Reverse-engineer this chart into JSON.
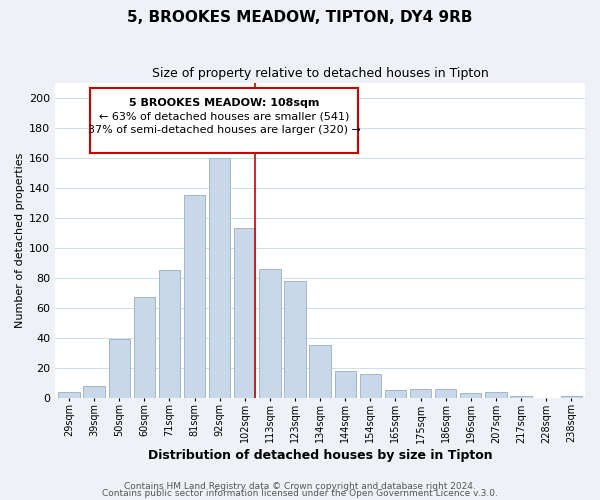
{
  "title": "5, BROOKES MEADOW, TIPTON, DY4 9RB",
  "subtitle": "Size of property relative to detached houses in Tipton",
  "xlabel": "Distribution of detached houses by size in Tipton",
  "ylabel": "Number of detached properties",
  "bar_labels": [
    "29sqm",
    "39sqm",
    "50sqm",
    "60sqm",
    "71sqm",
    "81sqm",
    "92sqm",
    "102sqm",
    "113sqm",
    "123sqm",
    "134sqm",
    "144sqm",
    "154sqm",
    "165sqm",
    "175sqm",
    "186sqm",
    "196sqm",
    "207sqm",
    "217sqm",
    "228sqm",
    "238sqm"
  ],
  "bar_values": [
    4,
    8,
    39,
    67,
    85,
    135,
    160,
    113,
    86,
    78,
    35,
    18,
    16,
    5,
    6,
    6,
    3,
    4,
    1,
    0,
    1
  ],
  "bar_color": "#c8d8e8",
  "bar_edge_color": "#a0b8cc",
  "ylim": [
    0,
    210
  ],
  "yticks": [
    0,
    20,
    40,
    60,
    80,
    100,
    120,
    140,
    160,
    180,
    200
  ],
  "marker_line_color": "#cc0000",
  "annotation_title": "5 BROOKES MEADOW: 108sqm",
  "annotation_line1": "← 63% of detached houses are smaller (541)",
  "annotation_line2": "37% of semi-detached houses are larger (320) →",
  "annotation_box_color": "#ffffff",
  "annotation_box_edge_color": "#cc0000",
  "footer_line1": "Contains HM Land Registry data © Crown copyright and database right 2024.",
  "footer_line2": "Contains public sector information licensed under the Open Government Licence v.3.0.",
  "background_color": "#eef2f6",
  "plot_background_color": "#ffffff",
  "grid_color": "#d0dce8"
}
